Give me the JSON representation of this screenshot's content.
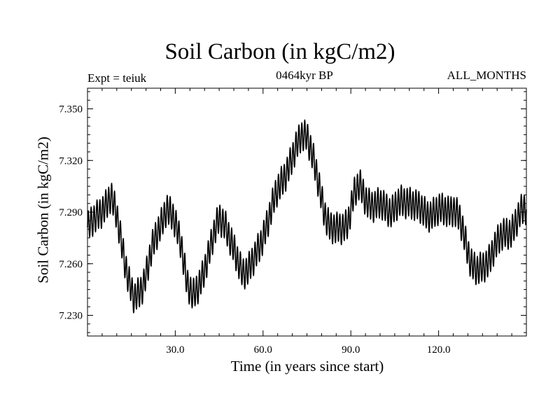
{
  "chart_data": {
    "type": "line",
    "title": "Soil Carbon (in kgC/m2)",
    "subtitle": "0464kyr BP",
    "left_label": "Expt = teiuk",
    "right_label": "ALL_MONTHS",
    "xlabel": "Time (in years since start)",
    "ylabel": "Soil Carbon (in kgC/m2)",
    "xlim": [
      0,
      150
    ],
    "ylim": [
      7.218,
      7.362
    ],
    "xticks": [
      {
        "value": 30,
        "label": "30.0"
      },
      {
        "value": 60,
        "label": "60.0"
      },
      {
        "value": 90,
        "label": "90.0"
      },
      {
        "value": 120,
        "label": "120.0"
      }
    ],
    "yticks": [
      {
        "value": 7.23,
        "label": "7.230"
      },
      {
        "value": 7.26,
        "label": "7.260"
      },
      {
        "value": 7.29,
        "label": "7.290"
      },
      {
        "value": 7.32,
        "label": "7.320"
      },
      {
        "value": 7.35,
        "label": "7.350"
      }
    ],
    "series": [
      {
        "name": "Soil Carbon",
        "seasonal_amplitude": 0.0085,
        "samples_per_year": 12,
        "trend": {
          "x": [
            0,
            2,
            5,
            8,
            10,
            12,
            14,
            16,
            19,
            22,
            25,
            27,
            29,
            32,
            34,
            36,
            38,
            40,
            43,
            45,
            47,
            49,
            51,
            53,
            55,
            57,
            59,
            61,
            63,
            65,
            67,
            69,
            71,
            73,
            75,
            77,
            79,
            81,
            83,
            85,
            87,
            89,
            91,
            93,
            95,
            98,
            101,
            104,
            107,
            110,
            113,
            116,
            119,
            122,
            125,
            127,
            129,
            131,
            133,
            135,
            137,
            139,
            142,
            145,
            148,
            150
          ],
          "y": [
            7.281,
            7.284,
            7.292,
            7.298,
            7.288,
            7.27,
            7.25,
            7.238,
            7.248,
            7.268,
            7.283,
            7.293,
            7.287,
            7.272,
            7.25,
            7.24,
            7.246,
            7.258,
            7.275,
            7.286,
            7.284,
            7.273,
            7.262,
            7.255,
            7.258,
            7.262,
            7.27,
            7.282,
            7.293,
            7.302,
            7.31,
            7.318,
            7.325,
            7.334,
            7.336,
            7.322,
            7.305,
            7.29,
            7.282,
            7.279,
            7.28,
            7.285,
            7.3,
            7.305,
            7.298,
            7.293,
            7.294,
            7.291,
            7.295,
            7.297,
            7.292,
            7.289,
            7.29,
            7.291,
            7.292,
            7.286,
            7.274,
            7.262,
            7.256,
            7.256,
            7.262,
            7.27,
            7.276,
            7.28,
            7.289,
            7.292
          ]
        }
      }
    ]
  }
}
